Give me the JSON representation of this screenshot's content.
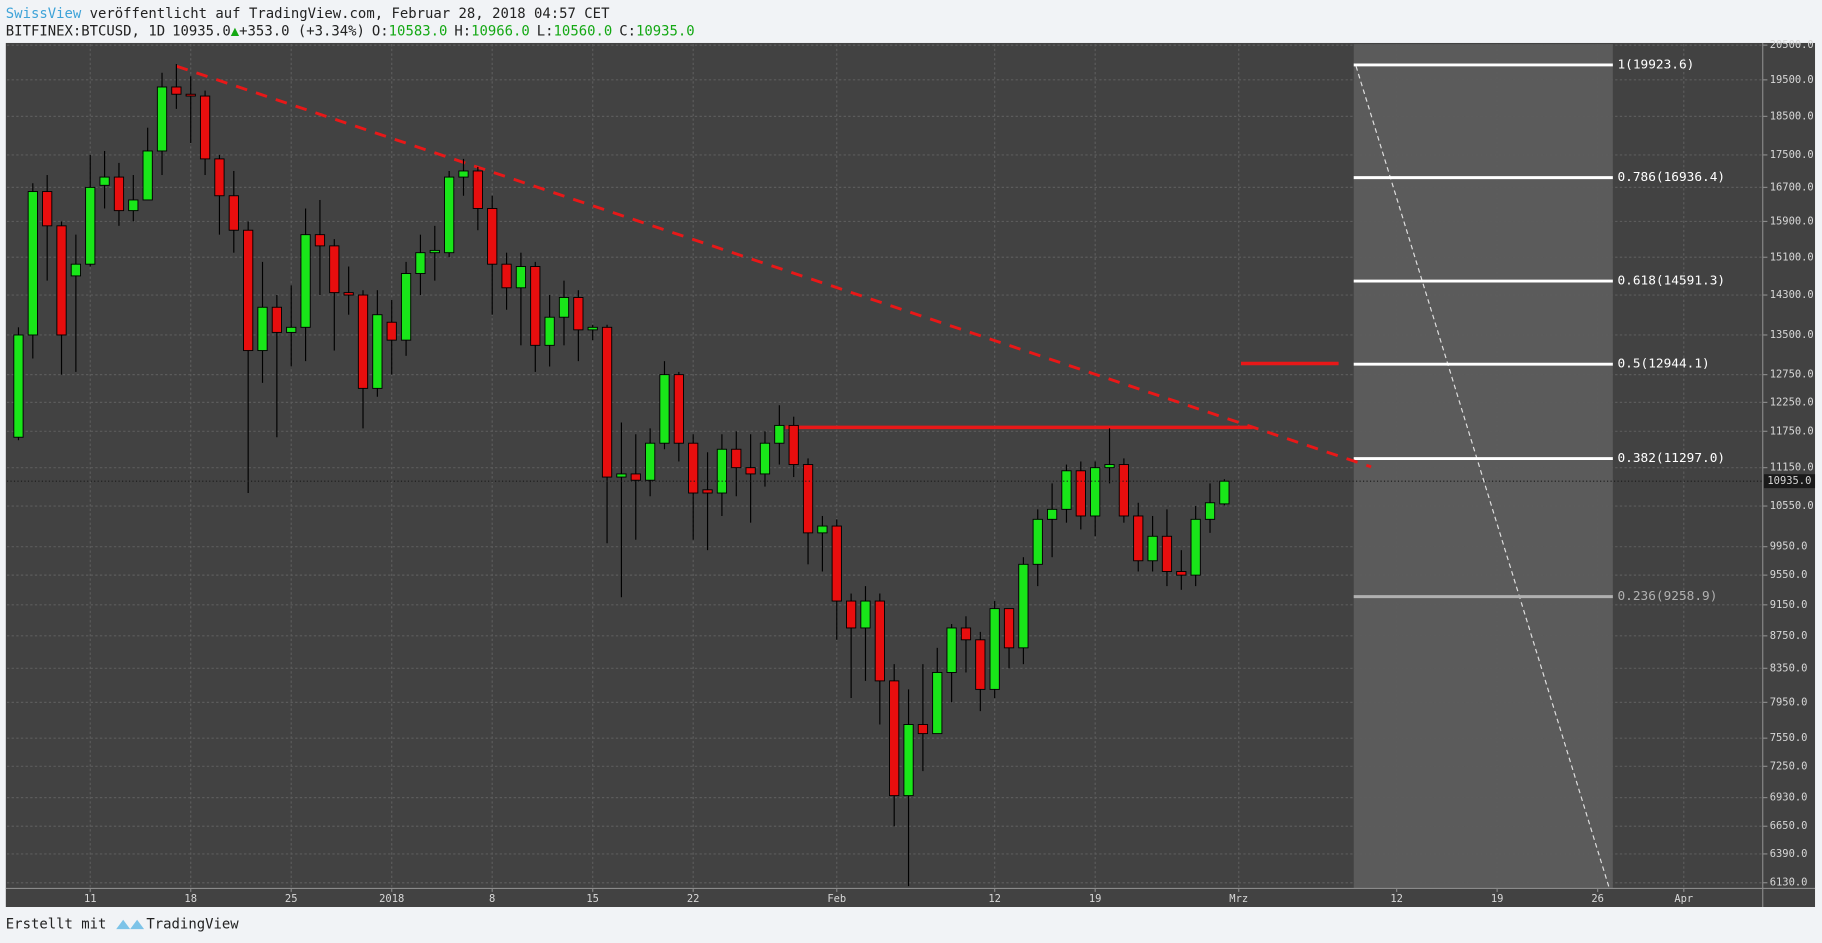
{
  "chart_data": {
    "type": "candlestick",
    "header": {
      "author": "SwissView",
      "published": " veröffentlicht auf TradingView.com, Februar 28, 2018 04:57 CET",
      "symbol": "BITFINEX:BTCUSD, 1D",
      "last": "10935.0",
      "change": "+353.0 (+3.34%)",
      "fields": [
        {
          "key": "O:",
          "value": "10583.0"
        },
        {
          "key": "H:",
          "value": "10966.0"
        },
        {
          "key": "L:",
          "value": "10560.0"
        },
        {
          "key": "C:",
          "value": "10935.0"
        }
      ]
    },
    "footer": {
      "created": "Erstellt mit",
      "brand": "TradingView"
    },
    "log_y": true,
    "grid": true,
    "up_color": "#19e619",
    "down_color": "#e80e0e",
    "x": [
      0,
      1,
      2,
      3,
      4,
      5,
      6,
      7,
      8,
      9,
      10,
      11,
      12,
      13,
      14,
      15,
      16,
      17,
      18,
      19,
      20,
      21,
      22,
      23,
      24,
      25,
      26,
      27,
      28,
      29,
      30,
      31,
      32,
      33,
      34,
      35,
      36,
      37,
      38,
      39,
      40,
      41,
      42,
      43,
      44,
      45,
      46,
      47,
      48,
      49,
      50,
      51,
      52,
      53,
      54,
      55,
      56,
      57,
      58,
      59,
      60,
      61,
      62,
      63,
      64,
      65,
      66,
      67,
      68,
      69,
      70,
      71,
      72,
      73,
      74,
      75,
      76,
      77,
      78,
      79,
      80,
      81,
      82,
      83,
      84
    ],
    "open": [
      11650,
      13500,
      16600,
      15800,
      14700,
      14950,
      16750,
      16950,
      16150,
      16400,
      17600,
      19300,
      19100,
      19050,
      17400,
      16500,
      15700,
      13200,
      14050,
      13550,
      13650,
      15600,
      15350,
      14350,
      14300,
      12500,
      13750,
      13400,
      14750,
      15200,
      15200,
      16950,
      17100,
      16200,
      14950,
      14450,
      14900,
      13300,
      13850,
      14250,
      13600,
      13650,
      11000,
      11050,
      10950,
      11550,
      12750,
      11550,
      10800,
      10750,
      11450,
      11150,
      11050,
      11550,
      11850,
      11200,
      10150,
      10250,
      9200,
      8850,
      9200,
      8200,
      6950,
      7700,
      7600,
      8300,
      8850,
      8700,
      8100,
      9100,
      8600,
      9700,
      10350,
      10500,
      11100,
      10400,
      11150,
      11200,
      10400,
      9750,
      10100,
      9600,
      9550,
      10350,
      10583
    ],
    "high": [
      13650,
      16800,
      17000,
      15900,
      15600,
      17500,
      17600,
      17300,
      17000,
      18200,
      19700,
      19950,
      19600,
      19200,
      17500,
      17100,
      15900,
      15000,
      14300,
      14500,
      16200,
      16400,
      15500,
      14900,
      14400,
      14400,
      14200,
      15000,
      15600,
      15800,
      17100,
      17400,
      17200,
      16500,
      15200,
      15200,
      15000,
      14300,
      14600,
      14400,
      13700,
      13700,
      11900,
      11700,
      11800,
      13000,
      12800,
      11700,
      11400,
      11700,
      11750,
      11700,
      11750,
      12200,
      12000,
      11300,
      10400,
      10350,
      9300,
      9400,
      9300,
      8400,
      8100,
      8400,
      8600,
      8900,
      9000,
      8800,
      9200,
      9100,
      9800,
      10500,
      10900,
      11200,
      11250,
      11250,
      11800,
      11300,
      10600,
      10400,
      10500,
      9900,
      10550,
      10900,
      10966
    ],
    "low": [
      11600,
      13050,
      14600,
      12750,
      12800,
      14900,
      16200,
      15800,
      15900,
      16400,
      17000,
      18700,
      17800,
      17000,
      15600,
      15200,
      10750,
      12600,
      11650,
      12900,
      13000,
      14300,
      13200,
      13900,
      11800,
      12350,
      12750,
      13100,
      14300,
      14600,
      15100,
      16500,
      15700,
      13900,
      14000,
      13300,
      12800,
      12900,
      13300,
      13000,
      13400,
      10000,
      9250,
      10050,
      10700,
      11450,
      11250,
      10050,
      9900,
      10400,
      10700,
      10300,
      10850,
      11200,
      11000,
      9700,
      9600,
      8700,
      8000,
      8200,
      7700,
      6650,
      6100,
      7200,
      7600,
      7950,
      8300,
      7850,
      8000,
      8350,
      8400,
      9400,
      9800,
      10300,
      10200,
      10100,
      10900,
      10300,
      9600,
      9600,
      9400,
      9350,
      9400,
      10150,
      10560
    ],
    "close": [
      13500,
      16600,
      15800,
      13500,
      14950,
      16700,
      16950,
      16150,
      16400,
      17600,
      19300,
      19100,
      19050,
      17400,
      16500,
      15700,
      13200,
      14050,
      13550,
      13650,
      15600,
      15350,
      14350,
      14300,
      12500,
      13900,
      13400,
      14750,
      15200,
      15250,
      16950,
      17100,
      16200,
      14950,
      14450,
      14900,
      13300,
      13850,
      14250,
      13600,
      13650,
      11000,
      11050,
      10950,
      11550,
      12750,
      11550,
      10750,
      10750,
      11450,
      11150,
      11050,
      11550,
      11850,
      11200,
      10150,
      10250,
      9200,
      8850,
      9200,
      8200,
      6950,
      7700,
      7600,
      8300,
      8850,
      8700,
      8100,
      9100,
      8600,
      9700,
      10350,
      10500,
      11100,
      10400,
      11150,
      11200,
      10400,
      9750,
      10100,
      9600,
      9550,
      10350,
      10600,
      10935
    ],
    "xlim": [
      -0.8,
      121.5
    ],
    "xticks": [
      {
        "value": 5,
        "label": "11"
      },
      {
        "value": 12,
        "label": "18"
      },
      {
        "value": 19,
        "label": "25"
      },
      {
        "value": 26,
        "label": "2018"
      },
      {
        "value": 33,
        "label": "8"
      },
      {
        "value": 40,
        "label": "15"
      },
      {
        "value": 47,
        "label": "22"
      },
      {
        "value": 57,
        "label": "Feb"
      },
      {
        "value": 68,
        "label": "12"
      },
      {
        "value": 75,
        "label": "19"
      },
      {
        "value": 85,
        "label": "Mrz"
      },
      {
        "value": 96,
        "label": "12"
      },
      {
        "value": 103,
        "label": "19"
      },
      {
        "value": 110,
        "label": "26"
      },
      {
        "value": 116,
        "label": "Apr"
      }
    ],
    "ylim": [
      6080,
      20530
    ],
    "yticks": [
      {
        "value": 6130,
        "label": "6130.0"
      },
      {
        "value": 6390,
        "label": "6390.0"
      },
      {
        "value": 6650,
        "label": "6650.0"
      },
      {
        "value": 6930,
        "label": "6930.0"
      },
      {
        "value": 7250,
        "label": "7250.0"
      },
      {
        "value": 7550,
        "label": "7550.0"
      },
      {
        "value": 7950,
        "label": "7950.0"
      },
      {
        "value": 8350,
        "label": "8350.0"
      },
      {
        "value": 8750,
        "label": "8750.0"
      },
      {
        "value": 9150,
        "label": "9150.0"
      },
      {
        "value": 9550,
        "label": "9550.0"
      },
      {
        "value": 9950,
        "label": "9950.0"
      },
      {
        "value": 10550,
        "label": "10550.0"
      },
      {
        "value": 11150,
        "label": "11150.0"
      },
      {
        "value": 11750,
        "label": "11750.0"
      },
      {
        "value": 12250,
        "label": "12250.0"
      },
      {
        "value": 12750,
        "label": "12750.0"
      },
      {
        "value": 13500,
        "label": "13500.0"
      },
      {
        "value": 14300,
        "label": "14300.0"
      },
      {
        "value": 15100,
        "label": "15100.0"
      },
      {
        "value": 15900,
        "label": "15900.0"
      },
      {
        "value": 16700,
        "label": "16700.0"
      },
      {
        "value": 17500,
        "label": "17500.0"
      },
      {
        "value": 18500,
        "label": "18500.0"
      },
      {
        "value": 19500,
        "label": "19500.0"
      },
      {
        "value": 20500,
        "label": "20500.0"
      }
    ],
    "last_price": {
      "value": 10935,
      "label": "10935.0"
    },
    "fib_levels": [
      {
        "value": 19923.6,
        "label": "1(19923.6)",
        "color": "#ffffff"
      },
      {
        "value": 16936.4,
        "label": "0.786(16936.4)",
        "color": "#ffffff"
      },
      {
        "value": 14591.3,
        "label": "0.618(14591.3)",
        "color": "#ffffff"
      },
      {
        "value": 12944.1,
        "label": "0.5(12944.1)",
        "color": "#ffffff"
      },
      {
        "value": 11297.0,
        "label": "0.382(11297.0)",
        "color": "#ffffff"
      },
      {
        "value": 9258.9,
        "label": "0.236(9258.9)",
        "color": "#b0b0b0"
      }
    ]
  }
}
